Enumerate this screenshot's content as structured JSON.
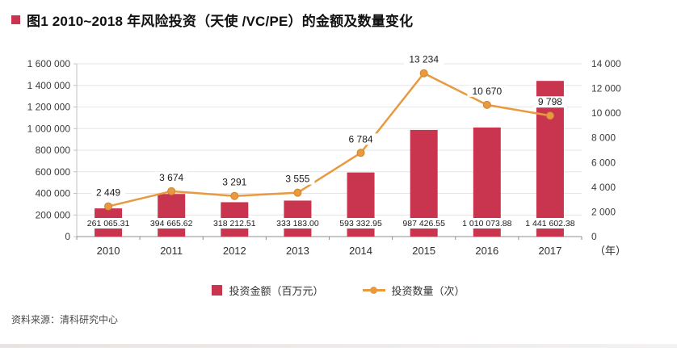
{
  "header": {
    "title": "图1 2010~2018 年风险投资（天使 /VC/PE）的金额及数量变化"
  },
  "source": "资料来源：清科研究中心",
  "accent_color": "#c9344e",
  "chart_data": {
    "type": "bar",
    "subtype": "bar+line combo, dual axis",
    "categories": [
      "2010",
      "2011",
      "2012",
      "2013",
      "2014",
      "2015",
      "2016",
      "2017"
    ],
    "x_axis_unit": "（年）",
    "series": [
      {
        "name": "投资金额（百万元）",
        "type": "bar",
        "axis": "left",
        "color": "#c9344e",
        "values": [
          261065.31,
          394665.62,
          318212.51,
          333183.0,
          593332.95,
          987426.55,
          1010073.88,
          1441602.38
        ],
        "labels": [
          "261 065.31",
          "394 665.62",
          "318 212.51",
          "333 183.00",
          "593 332.95",
          "987 426.55",
          "1 010 073.88",
          "1 441 602.38"
        ]
      },
      {
        "name": "投资数量（次）",
        "type": "line",
        "axis": "right",
        "color": "#e79a3f",
        "marker_stroke": "#cf8630",
        "values": [
          2449,
          3674,
          3291,
          3555,
          6784,
          13234,
          10670,
          9798
        ],
        "labels": [
          "2 449",
          "3 674",
          "3 291",
          "3 555",
          "6 784",
          "13 234",
          "10 670",
          "9 798"
        ]
      }
    ],
    "left_axis": {
      "min": 0,
      "max": 1600000,
      "step": 200000
    },
    "right_axis": {
      "min": 0,
      "max": 14000,
      "step": 2000
    },
    "grid": true,
    "legend_position": "bottom"
  }
}
